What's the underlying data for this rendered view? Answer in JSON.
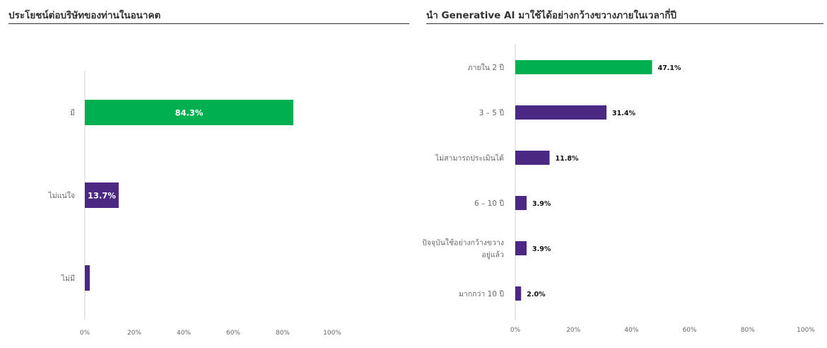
{
  "chart_data": [
    {
      "type": "bar",
      "orientation": "horizontal",
      "title": "ประโยชน์ต่อบริษัทของท่านในอนาคต",
      "categories": [
        "มี",
        "ไม่แน่ใจ",
        "ไม่มี"
      ],
      "values": [
        84.3,
        13.7,
        2.0
      ],
      "value_labels": [
        "84.3%",
        "13.7%",
        ""
      ],
      "xlim": [
        0,
        100
      ],
      "xticks": [
        "0%",
        "20%",
        "40%",
        "60%",
        "80%",
        "100%"
      ],
      "bar_colors": [
        "#00b050",
        "#4b2882",
        "#4b2882"
      ],
      "grid": false,
      "value_label_position": "inside"
    },
    {
      "type": "bar",
      "orientation": "horizontal",
      "title": "นำ Generative AI มาใช้ได้อย่างกว้างขวางภายในเวลากี่ปี",
      "categories": [
        [
          "ภายใน 2 ปี"
        ],
        [
          "3 – 5 ปี"
        ],
        [
          "ไม่สามารถประเมินได้"
        ],
        [
          "6 – 10 ปี"
        ],
        [
          "ปัจจุบันใช้อย่างกว้างขวาง",
          "อยู่แล้ว"
        ],
        [
          "มากกว่า 10 ปี"
        ]
      ],
      "values": [
        47.1,
        31.4,
        11.8,
        3.9,
        3.9,
        2.0
      ],
      "value_labels": [
        "47.1%",
        "31.4%",
        "11.8%",
        "3.9%",
        "3.9%",
        "2.0%"
      ],
      "xlim": [
        0,
        100
      ],
      "xticks": [
        "0%",
        "20%",
        "40%",
        "60%",
        "80%",
        "100%"
      ],
      "bar_colors": [
        "#00b050",
        "#4b2882",
        "#4b2882",
        "#4b2882",
        "#4b2882",
        "#4b2882"
      ],
      "grid": false,
      "value_label_position": "outside"
    }
  ]
}
